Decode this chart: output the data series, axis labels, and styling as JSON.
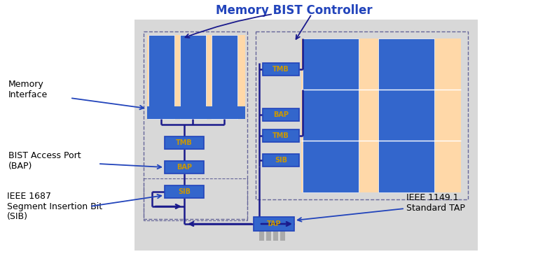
{
  "white_bg": "#ffffff",
  "blue_dark": "#1a1a8c",
  "blue_mid": "#2244bb",
  "blue_fill": "#3366cc",
  "orange_fill": "#ffd8a8",
  "yellow_text": "#cc9900",
  "gray_bg": "#d8d8d8",
  "gray_pin": "#aaaaaa",
  "title": "Memory BIST Controller",
  "title_color": "#2244bb",
  "dashed_color": "#666699",
  "labels": {
    "memory_interface": "Memory\nInterface",
    "bist_access": "BIST Access Port\n(BAP)",
    "ieee1687": "IEEE 1687\nSegment Insertion Bit\n(SIB)",
    "ieee1149": "IEEE 1149.1\nStandard TAP"
  }
}
